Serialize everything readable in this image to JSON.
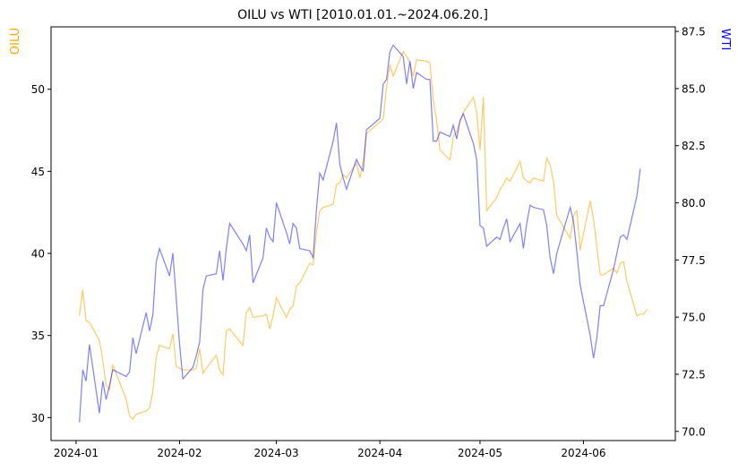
{
  "chart_data": {
    "type": "line",
    "title": "OILU vs WTI [2010.01.01.~2024.06.20.]",
    "grid": false,
    "xlabel": "",
    "x_ticks": [
      "2024-01",
      "2024-02",
      "2024-03",
      "2024-04",
      "2024-05",
      "2024-06"
    ],
    "left_axis": {
      "label": "OILU",
      "color": "#FFA500",
      "ylim": [
        28.6,
        53.8
      ],
      "ticks": [
        30,
        35,
        40,
        45,
        50
      ]
    },
    "right_axis": {
      "label": "WTI",
      "color": "#0000FF",
      "ylim": [
        69.6,
        87.7
      ],
      "ticks": [
        "70.0",
        "72.5",
        "75.0",
        "77.5",
        "80.0",
        "82.5",
        "85.0",
        "87.5"
      ]
    },
    "series": [
      {
        "name": "OILU",
        "axis": "left",
        "color": "#FFA500",
        "points": [
          [
            "2024-01-02",
            36.2
          ],
          [
            "2024-01-03",
            37.8
          ],
          [
            "2024-01-04",
            35.9
          ],
          [
            "2024-01-05",
            35.8
          ],
          [
            "2024-01-08",
            34.7
          ],
          [
            "2024-01-09",
            33.5
          ],
          [
            "2024-01-10",
            32.0
          ],
          [
            "2024-01-11",
            31.7
          ],
          [
            "2024-01-12",
            33.2
          ],
          [
            "2024-01-16",
            31.1
          ],
          [
            "2024-01-17",
            30.1
          ],
          [
            "2024-01-18",
            29.9
          ],
          [
            "2024-01-19",
            30.2
          ],
          [
            "2024-01-22",
            30.4
          ],
          [
            "2024-01-23",
            30.6
          ],
          [
            "2024-01-24",
            31.6
          ],
          [
            "2024-01-25",
            33.7
          ],
          [
            "2024-01-26",
            34.4
          ],
          [
            "2024-01-29",
            34.2
          ],
          [
            "2024-01-30",
            35.1
          ],
          [
            "2024-01-31",
            33.1
          ],
          [
            "2024-02-01",
            33.0
          ],
          [
            "2024-02-02",
            32.9
          ],
          [
            "2024-02-05",
            32.9
          ],
          [
            "2024-02-06",
            33.0
          ],
          [
            "2024-02-07",
            34.2
          ],
          [
            "2024-02-08",
            32.7
          ],
          [
            "2024-02-09",
            33.0
          ],
          [
            "2024-02-12",
            33.8
          ],
          [
            "2024-02-13",
            32.9
          ],
          [
            "2024-02-14",
            32.6
          ],
          [
            "2024-02-15",
            35.3
          ],
          [
            "2024-02-16",
            35.4
          ],
          [
            "2024-02-20",
            34.4
          ],
          [
            "2024-02-21",
            36.4
          ],
          [
            "2024-02-22",
            36.7
          ],
          [
            "2024-02-23",
            36.1
          ],
          [
            "2024-02-26",
            36.2
          ],
          [
            "2024-02-27",
            36.3
          ],
          [
            "2024-02-28",
            35.4
          ],
          [
            "2024-02-29",
            36.2
          ],
          [
            "2024-03-01",
            37.3
          ],
          [
            "2024-03-04",
            36.1
          ],
          [
            "2024-03-05",
            36.6
          ],
          [
            "2024-03-06",
            36.8
          ],
          [
            "2024-03-07",
            38.0
          ],
          [
            "2024-03-08",
            38.2
          ],
          [
            "2024-03-11",
            39.4
          ],
          [
            "2024-03-12",
            39.3
          ],
          [
            "2024-03-13",
            41.3
          ],
          [
            "2024-03-14",
            42.6
          ],
          [
            "2024-03-15",
            42.8
          ],
          [
            "2024-03-18",
            43.0
          ],
          [
            "2024-03-19",
            44.2
          ],
          [
            "2024-03-20",
            44.3
          ],
          [
            "2024-03-21",
            44.8
          ],
          [
            "2024-03-22",
            44.6
          ],
          [
            "2024-03-25",
            45.5
          ],
          [
            "2024-03-26",
            44.6
          ],
          [
            "2024-03-27",
            45.6
          ],
          [
            "2024-03-28",
            47.3
          ],
          [
            "2024-04-01",
            48.0
          ],
          [
            "2024-04-02",
            48.2
          ],
          [
            "2024-04-03",
            50.1
          ],
          [
            "2024-04-04",
            51.5
          ],
          [
            "2024-04-05",
            50.8
          ],
          [
            "2024-04-08",
            52.3
          ],
          [
            "2024-04-09",
            52.0
          ],
          [
            "2024-04-10",
            51.6
          ],
          [
            "2024-04-11",
            50.8
          ],
          [
            "2024-04-12",
            51.8
          ],
          [
            "2024-04-15",
            51.7
          ],
          [
            "2024-04-16",
            51.6
          ],
          [
            "2024-04-17",
            49.3
          ],
          [
            "2024-04-18",
            48.1
          ],
          [
            "2024-04-19",
            46.3
          ],
          [
            "2024-04-22",
            45.7
          ],
          [
            "2024-04-23",
            47.1
          ],
          [
            "2024-04-24",
            47.4
          ],
          [
            "2024-04-25",
            48.0
          ],
          [
            "2024-04-26",
            48.6
          ],
          [
            "2024-04-29",
            49.5
          ],
          [
            "2024-04-30",
            48.6
          ],
          [
            "2024-05-01",
            46.3
          ],
          [
            "2024-05-02",
            49.5
          ],
          [
            "2024-05-03",
            42.6
          ],
          [
            "2024-05-06",
            43.4
          ],
          [
            "2024-05-07",
            43.9
          ],
          [
            "2024-05-08",
            44.2
          ],
          [
            "2024-05-09",
            44.6
          ],
          [
            "2024-05-10",
            44.4
          ],
          [
            "2024-05-13",
            45.6
          ],
          [
            "2024-05-14",
            44.6
          ],
          [
            "2024-05-15",
            44.4
          ],
          [
            "2024-05-16",
            44.3
          ],
          [
            "2024-05-17",
            44.6
          ],
          [
            "2024-05-20",
            44.4
          ],
          [
            "2024-05-21",
            45.8
          ],
          [
            "2024-05-22",
            45.4
          ],
          [
            "2024-05-23",
            44.4
          ],
          [
            "2024-05-24",
            42.3
          ],
          [
            "2024-05-28",
            40.9
          ],
          [
            "2024-05-29",
            42.3
          ],
          [
            "2024-05-30",
            42.6
          ],
          [
            "2024-05-31",
            40.2
          ],
          [
            "2024-06-03",
            43.2
          ],
          [
            "2024-06-04",
            42.1
          ],
          [
            "2024-06-05",
            40.4
          ],
          [
            "2024-06-06",
            38.7
          ],
          [
            "2024-06-07",
            38.7
          ],
          [
            "2024-06-10",
            39.1
          ],
          [
            "2024-06-11",
            38.8
          ],
          [
            "2024-06-12",
            39.4
          ],
          [
            "2024-06-13",
            39.5
          ],
          [
            "2024-06-14",
            38.3
          ],
          [
            "2024-06-17",
            36.2
          ],
          [
            "2024-06-18",
            36.3
          ],
          [
            "2024-06-19",
            36.3
          ],
          [
            "2024-06-20",
            36.6
          ]
        ]
      },
      {
        "name": "WTI",
        "axis": "right",
        "color": "#0000FF",
        "points": [
          [
            "2024-01-02",
            70.4
          ],
          [
            "2024-01-03",
            72.7
          ],
          [
            "2024-01-04",
            72.2
          ],
          [
            "2024-01-05",
            73.8
          ],
          [
            "2024-01-08",
            70.8
          ],
          [
            "2024-01-09",
            72.2
          ],
          [
            "2024-01-10",
            71.4
          ],
          [
            "2024-01-11",
            72.0
          ],
          [
            "2024-01-12",
            72.7
          ],
          [
            "2024-01-16",
            72.4
          ],
          [
            "2024-01-17",
            72.6
          ],
          [
            "2024-01-18",
            74.1
          ],
          [
            "2024-01-19",
            73.4
          ],
          [
            "2024-01-22",
            75.2
          ],
          [
            "2024-01-23",
            74.4
          ],
          [
            "2024-01-24",
            75.1
          ],
          [
            "2024-01-25",
            77.4
          ],
          [
            "2024-01-26",
            78.0
          ],
          [
            "2024-01-29",
            76.8
          ],
          [
            "2024-01-30",
            77.8
          ],
          [
            "2024-01-31",
            75.8
          ],
          [
            "2024-02-01",
            73.8
          ],
          [
            "2024-02-02",
            72.3
          ],
          [
            "2024-02-05",
            72.8
          ],
          [
            "2024-02-06",
            73.3
          ],
          [
            "2024-02-07",
            73.9
          ],
          [
            "2024-02-08",
            76.2
          ],
          [
            "2024-02-09",
            76.8
          ],
          [
            "2024-02-12",
            76.9
          ],
          [
            "2024-02-13",
            77.9
          ],
          [
            "2024-02-14",
            76.6
          ],
          [
            "2024-02-15",
            78.0
          ],
          [
            "2024-02-16",
            79.1
          ],
          [
            "2024-02-20",
            78.2
          ],
          [
            "2024-02-21",
            77.9
          ],
          [
            "2024-02-22",
            78.6
          ],
          [
            "2024-02-23",
            76.5
          ],
          [
            "2024-02-26",
            77.6
          ],
          [
            "2024-02-27",
            78.9
          ],
          [
            "2024-02-28",
            78.5
          ],
          [
            "2024-02-29",
            78.3
          ],
          [
            "2024-03-01",
            80.0
          ],
          [
            "2024-03-04",
            78.7
          ],
          [
            "2024-03-05",
            78.2
          ],
          [
            "2024-03-06",
            79.1
          ],
          [
            "2024-03-07",
            78.9
          ],
          [
            "2024-03-08",
            78.0
          ],
          [
            "2024-03-11",
            77.9
          ],
          [
            "2024-03-12",
            77.6
          ],
          [
            "2024-03-13",
            79.7
          ],
          [
            "2024-03-14",
            81.3
          ],
          [
            "2024-03-15",
            81.0
          ],
          [
            "2024-03-18",
            82.7
          ],
          [
            "2024-03-19",
            83.5
          ],
          [
            "2024-03-20",
            81.7
          ],
          [
            "2024-03-21",
            81.1
          ],
          [
            "2024-03-22",
            80.6
          ],
          [
            "2024-03-25",
            81.9
          ],
          [
            "2024-03-26",
            81.6
          ],
          [
            "2024-03-27",
            81.4
          ],
          [
            "2024-03-28",
            83.2
          ],
          [
            "2024-04-01",
            83.7
          ],
          [
            "2024-04-02",
            85.2
          ],
          [
            "2024-04-03",
            85.4
          ],
          [
            "2024-04-04",
            86.6
          ],
          [
            "2024-04-05",
            86.9
          ],
          [
            "2024-04-08",
            86.4
          ],
          [
            "2024-04-09",
            85.2
          ],
          [
            "2024-04-10",
            86.2
          ],
          [
            "2024-04-11",
            85.0
          ],
          [
            "2024-04-12",
            85.7
          ],
          [
            "2024-04-15",
            85.4
          ],
          [
            "2024-04-16",
            85.4
          ],
          [
            "2024-04-17",
            82.7
          ],
          [
            "2024-04-18",
            82.7
          ],
          [
            "2024-04-19",
            83.1
          ],
          [
            "2024-04-22",
            82.9
          ],
          [
            "2024-04-23",
            83.4
          ],
          [
            "2024-04-24",
            82.8
          ],
          [
            "2024-04-25",
            83.6
          ],
          [
            "2024-04-26",
            83.9
          ],
          [
            "2024-04-29",
            82.6
          ],
          [
            "2024-04-30",
            81.9
          ],
          [
            "2024-05-01",
            79.0
          ],
          [
            "2024-05-02",
            78.9
          ],
          [
            "2024-05-03",
            78.1
          ],
          [
            "2024-05-06",
            78.5
          ],
          [
            "2024-05-07",
            78.4
          ],
          [
            "2024-05-08",
            78.9
          ],
          [
            "2024-05-09",
            79.3
          ],
          [
            "2024-05-10",
            78.3
          ],
          [
            "2024-05-13",
            79.1
          ],
          [
            "2024-05-14",
            78.0
          ],
          [
            "2024-05-15",
            79.1
          ],
          [
            "2024-05-16",
            79.9
          ],
          [
            "2024-05-17",
            79.8
          ],
          [
            "2024-05-20",
            79.7
          ],
          [
            "2024-05-21",
            79.0
          ],
          [
            "2024-05-22",
            77.6
          ],
          [
            "2024-05-23",
            76.9
          ],
          [
            "2024-05-24",
            77.8
          ],
          [
            "2024-05-28",
            79.8
          ],
          [
            "2024-05-29",
            79.2
          ],
          [
            "2024-05-30",
            77.9
          ],
          [
            "2024-05-31",
            76.4
          ],
          [
            "2024-06-03",
            74.2
          ],
          [
            "2024-06-04",
            73.2
          ],
          [
            "2024-06-05",
            74.1
          ],
          [
            "2024-06-06",
            75.5
          ],
          [
            "2024-06-07",
            75.5
          ],
          [
            "2024-06-10",
            77.1
          ],
          [
            "2024-06-11",
            77.8
          ],
          [
            "2024-06-12",
            78.5
          ],
          [
            "2024-06-13",
            78.6
          ],
          [
            "2024-06-14",
            78.4
          ],
          [
            "2024-06-17",
            80.3
          ],
          [
            "2024-06-18",
            81.5
          ]
        ]
      }
    ]
  }
}
